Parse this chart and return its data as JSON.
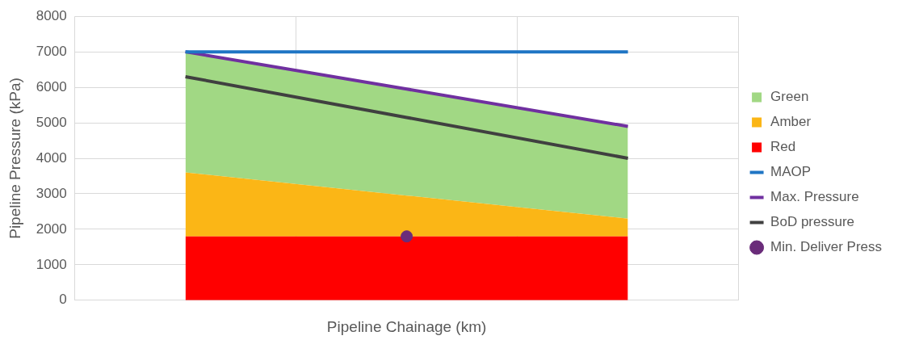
{
  "chart_data": {
    "type": "area",
    "xlabel": "Pipeline Chainage (km)",
    "ylabel": "Pipeline Pressure (kPa)",
    "categories": [
      null,
      null,
      null
    ],
    "stacked": true,
    "ylim": [
      0,
      8000
    ],
    "yticks": [
      0,
      1000,
      2000,
      3000,
      4000,
      5000,
      6000,
      7000,
      8000
    ],
    "grid": true,
    "legend": "right",
    "series": [
      {
        "name": "Red",
        "type": "area",
        "color": "#ff0000",
        "values": [
          1800,
          1800,
          1800
        ]
      },
      {
        "name": "Amber",
        "type": "area",
        "color": "#fbb616",
        "values": [
          1800,
          1150,
          500
        ]
      },
      {
        "name": "Green",
        "type": "area",
        "color": "#a1d884",
        "values": [
          3400,
          3000,
          2600
        ]
      },
      {
        "name": "MAOP",
        "type": "line",
        "color": "#1f75c4",
        "values": [
          7000,
          7000,
          7000
        ]
      },
      {
        "name": "Max. Pressure",
        "type": "line",
        "color": "#7030a0",
        "values": [
          7000,
          5950,
          4900
        ]
      },
      {
        "name": "BoD pressure",
        "type": "line",
        "color": "#404040",
        "values": [
          6300,
          5150,
          4000
        ]
      },
      {
        "name": "Min. Deliver Press",
        "type": "scatter",
        "color": "#6a2c7a",
        "marker": "circle",
        "values": [
          null,
          1800,
          null
        ]
      }
    ]
  }
}
